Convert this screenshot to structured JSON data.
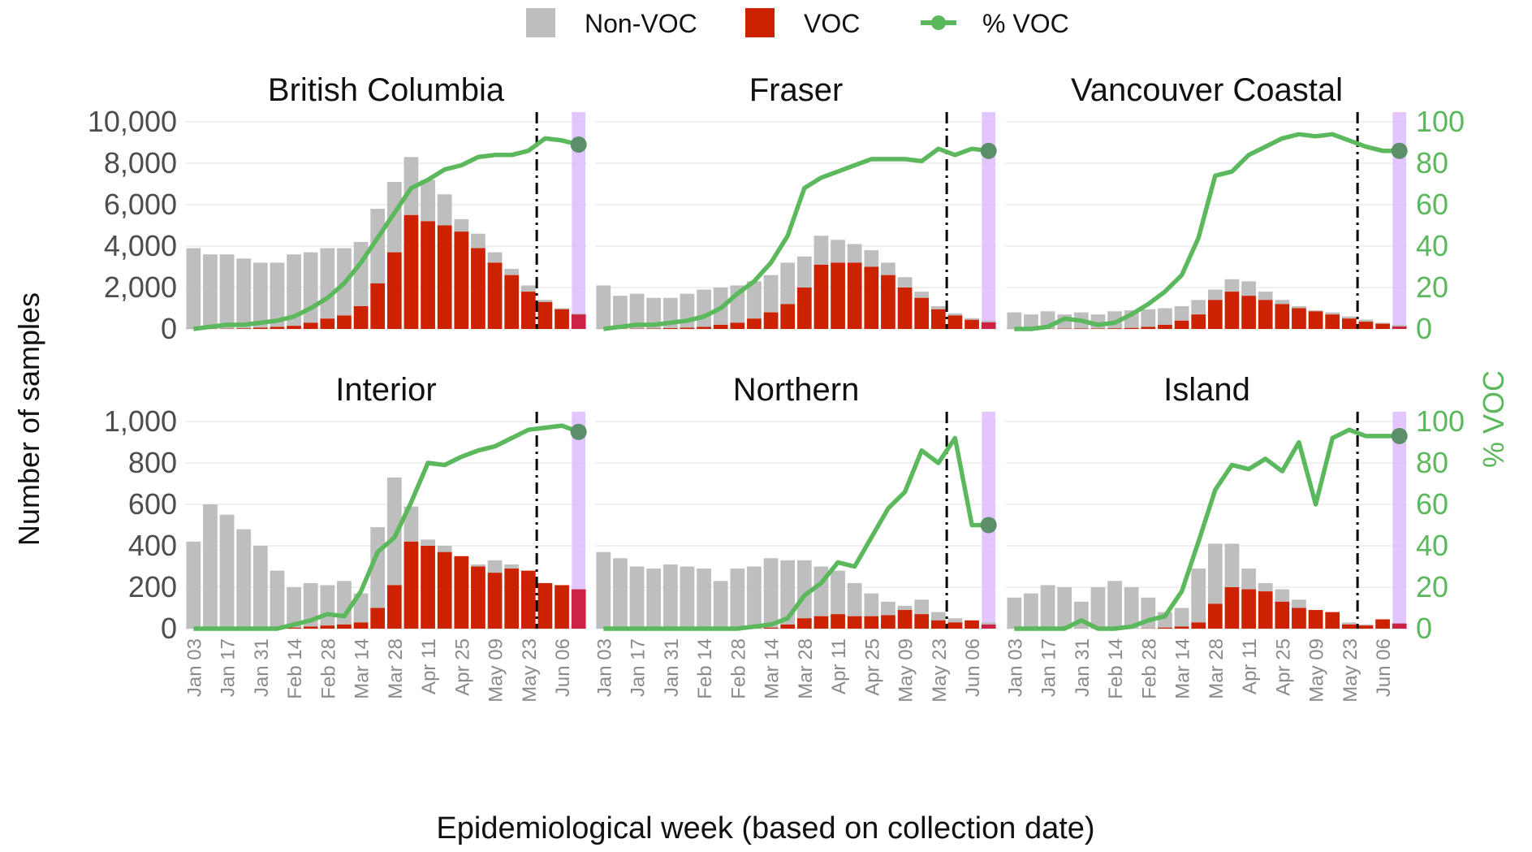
{
  "legend": {
    "items": [
      {
        "label": "Non-VOC",
        "color": "#bebebe",
        "kind": "box"
      },
      {
        "label": "VOC",
        "color": "#cc2200",
        "kind": "box"
      },
      {
        "label": "% VOC",
        "color": "#5cb85c",
        "kind": "line-point"
      }
    ]
  },
  "xlabel": "Epidemiological week (based on collection date)",
  "ylabel": "Number of samples",
  "y2label": "% VOC",
  "chart_data": {
    "type": "bar",
    "stacked": true,
    "secondary_series": "line",
    "x_ticks": [
      "Jan 03",
      "Jan 17",
      "Jan 31",
      "Feb 14",
      "Feb 28",
      "Mar 14",
      "Mar 28",
      "Apr 11",
      "Apr 25",
      "May 09",
      "May 23",
      "Jun 06"
    ],
    "weeks": [
      "Jan 03",
      "Jan 10",
      "Jan 17",
      "Jan 24",
      "Jan 31",
      "Feb 07",
      "Feb 14",
      "Feb 21",
      "Feb 28",
      "Mar 07",
      "Mar 14",
      "Mar 21",
      "Mar 28",
      "Apr 04",
      "Apr 11",
      "Apr 18",
      "Apr 25",
      "May 02",
      "May 09",
      "May 16",
      "May 23",
      "May 30",
      "Jun 06",
      "Jun 13"
    ],
    "cutoff_week": "May 23",
    "highlight_week": "Jun 13",
    "colors": {
      "nonvoc": "#bebebe",
      "voc": "#cc2200",
      "pct": "#5cb85c",
      "highlight": "#d9b3ff",
      "highlight_voc": "#cc2244"
    },
    "panels": [
      {
        "title": "British Columbia",
        "ylim": [
          0,
          10000
        ],
        "y_ticks": [
          "0",
          "2,000",
          "4,000",
          "6,000",
          "8,000",
          "10,000"
        ],
        "y_tick_values": [
          0,
          2000,
          4000,
          6000,
          8000,
          10000
        ],
        "total": [
          3900,
          3600,
          3600,
          3400,
          3200,
          3200,
          3600,
          3700,
          3900,
          3900,
          4200,
          5800,
          7100,
          8300,
          7200,
          6500,
          5300,
          4600,
          3700,
          2900,
          2100,
          1400,
          1000,
          750
        ],
        "voc": [
          5,
          10,
          15,
          30,
          60,
          100,
          150,
          300,
          500,
          650,
          1100,
          2200,
          3700,
          5500,
          5200,
          5000,
          4700,
          3900,
          3200,
          2600,
          1800,
          1300,
          950,
          700
        ],
        "pct_voc": [
          0,
          1,
          2,
          2,
          3,
          4,
          6,
          10,
          15,
          22,
          32,
          44,
          56,
          68,
          72,
          77,
          79,
          83,
          84,
          84,
          86,
          92,
          91,
          89
        ]
      },
      {
        "title": "Fraser",
        "ylim": [
          0,
          10000
        ],
        "y_ticks": [],
        "y_tick_values": [
          0,
          2000,
          4000,
          6000,
          8000,
          10000
        ],
        "total": [
          2100,
          1600,
          1700,
          1500,
          1500,
          1700,
          1900,
          2000,
          2100,
          2300,
          2600,
          3200,
          3500,
          4500,
          4300,
          4100,
          3800,
          3200,
          2500,
          1800,
          1100,
          750,
          520,
          400
        ],
        "voc": [
          5,
          10,
          15,
          20,
          40,
          60,
          100,
          200,
          300,
          500,
          800,
          1200,
          2000,
          3100,
          3200,
          3200,
          3000,
          2600,
          2000,
          1500,
          950,
          650,
          440,
          320
        ],
        "pct_voc": [
          0,
          1,
          2,
          2,
          3,
          4,
          6,
          10,
          17,
          23,
          32,
          45,
          68,
          73,
          76,
          79,
          82,
          82,
          82,
          81,
          87,
          84,
          87,
          86
        ]
      },
      {
        "title": "Vancouver Coastal",
        "ylim": [
          0,
          10000
        ],
        "y_ticks": [],
        "y_tick_values": [
          0,
          2000,
          4000,
          6000,
          8000,
          10000
        ],
        "total": [
          800,
          700,
          850,
          700,
          800,
          700,
          850,
          900,
          950,
          1000,
          1100,
          1400,
          1900,
          2400,
          2300,
          1800,
          1400,
          1100,
          900,
          800,
          600,
          450,
          300,
          200
        ],
        "voc": [
          5,
          5,
          10,
          15,
          20,
          20,
          30,
          50,
          100,
          200,
          400,
          700,
          1400,
          1800,
          1600,
          1400,
          1200,
          1000,
          850,
          700,
          500,
          350,
          250,
          120
        ],
        "pct_voc": [
          0,
          0,
          1,
          5,
          4,
          2,
          3,
          7,
          12,
          18,
          26,
          44,
          74,
          76,
          84,
          88,
          92,
          94,
          93,
          94,
          91,
          88,
          86,
          86
        ]
      },
      {
        "title": "Interior",
        "ylim": [
          0,
          1000
        ],
        "y_ticks": [
          "0",
          "200",
          "400",
          "600",
          "800",
          "1,000"
        ],
        "y_tick_values": [
          0,
          200,
          400,
          600,
          800,
          1000
        ],
        "total": [
          420,
          600,
          550,
          480,
          400,
          280,
          200,
          220,
          210,
          230,
          170,
          490,
          730,
          590,
          430,
          400,
          330,
          310,
          330,
          310,
          220,
          210,
          190,
          180
        ],
        "voc": [
          0,
          0,
          0,
          0,
          0,
          1,
          5,
          10,
          15,
          20,
          30,
          100,
          210,
          420,
          400,
          370,
          350,
          300,
          270,
          290,
          280,
          220,
          210,
          190
        ],
        "pct_voc": [
          0,
          0,
          0,
          0,
          0,
          0,
          2,
          4,
          7,
          6,
          18,
          37,
          44,
          61,
          80,
          79,
          83,
          86,
          88,
          92,
          96,
          97,
          98,
          95
        ]
      },
      {
        "title": "Northern",
        "ylim": [
          0,
          1000
        ],
        "y_ticks": [],
        "y_tick_values": [
          0,
          200,
          400,
          600,
          800,
          1000
        ],
        "total": [
          370,
          340,
          300,
          290,
          310,
          300,
          290,
          230,
          290,
          300,
          340,
          330,
          330,
          300,
          280,
          220,
          170,
          130,
          110,
          140,
          80,
          50,
          40,
          30
        ],
        "voc": [
          0,
          0,
          0,
          0,
          0,
          0,
          0,
          0,
          0,
          1,
          5,
          20,
          50,
          60,
          70,
          60,
          60,
          65,
          90,
          70,
          40,
          30,
          40,
          20
        ],
        "pct_voc": [
          0,
          0,
          0,
          0,
          0,
          0,
          0,
          0,
          0,
          1,
          2,
          5,
          16,
          22,
          32,
          30,
          44,
          58,
          66,
          86,
          80,
          92,
          50,
          50
        ]
      },
      {
        "title": "Island",
        "ylim": [
          0,
          1000
        ],
        "y_ticks": [],
        "y_tick_values": [
          0,
          200,
          400,
          600,
          800,
          1000
        ],
        "total": [
          150,
          170,
          210,
          200,
          130,
          200,
          230,
          200,
          150,
          80,
          100,
          290,
          410,
          410,
          290,
          220,
          190,
          140,
          90,
          80,
          30,
          20,
          45,
          25
        ],
        "voc": [
          0,
          0,
          0,
          0,
          0,
          0,
          0,
          0,
          1,
          5,
          10,
          30,
          120,
          200,
          190,
          180,
          130,
          100,
          90,
          80,
          20,
          15,
          45,
          25
        ],
        "pct_voc": [
          0,
          0,
          0,
          0,
          4,
          0,
          0,
          1,
          4,
          6,
          18,
          42,
          67,
          79,
          77,
          82,
          76,
          90,
          60,
          92,
          96,
          93,
          93,
          93
        ]
      }
    ],
    "y2lim": [
      0,
      100
    ],
    "y2_ticks": [
      "0",
      "20",
      "40",
      "60",
      "80",
      "100"
    ],
    "y2_tick_values": [
      0,
      20,
      40,
      60,
      80,
      100
    ]
  }
}
